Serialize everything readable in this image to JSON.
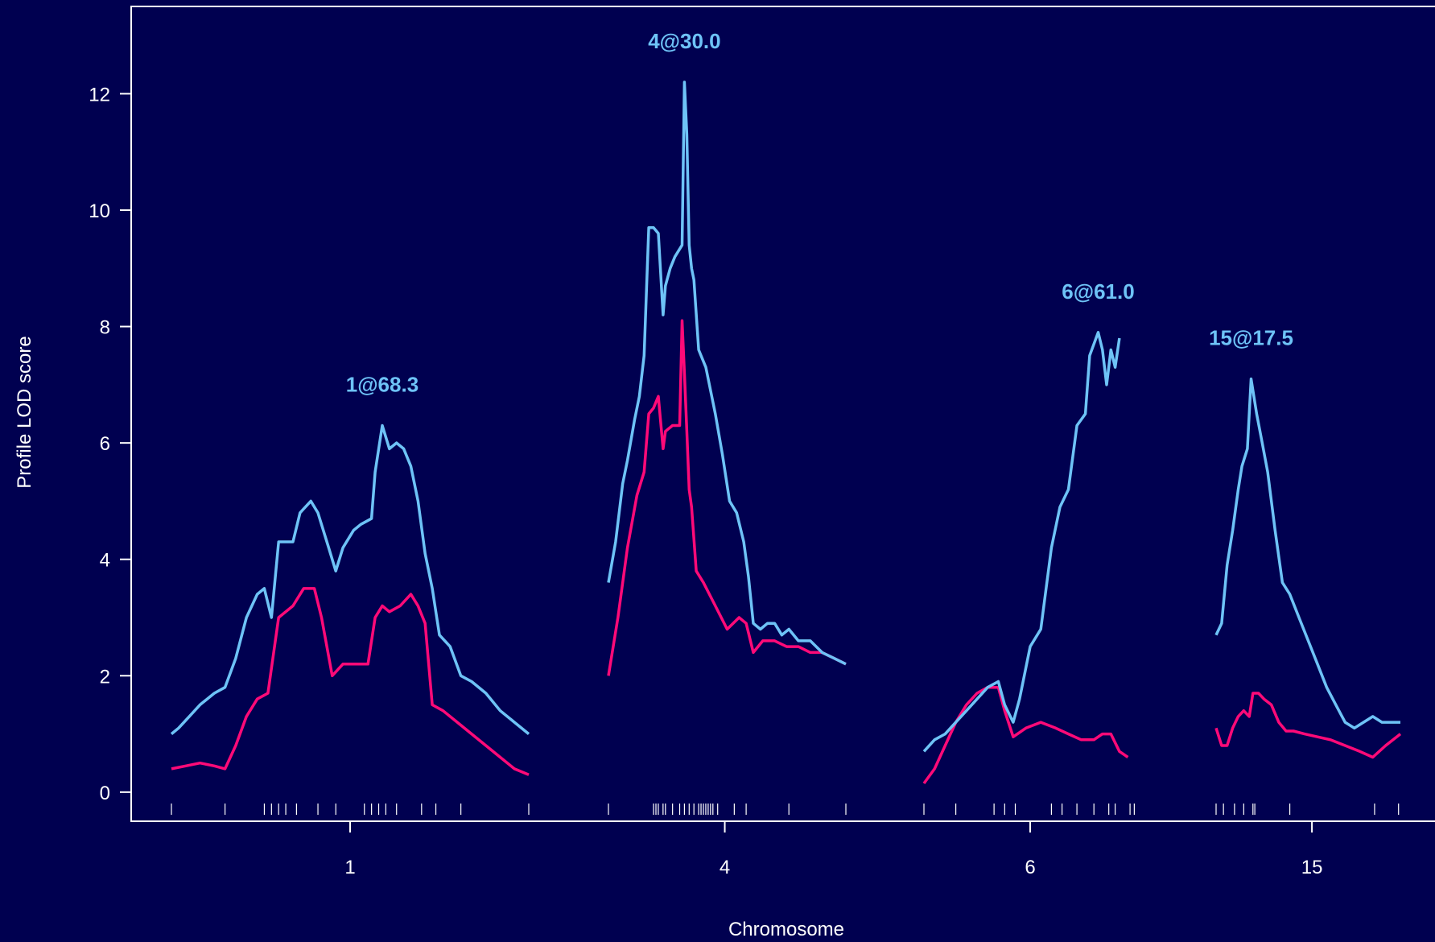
{
  "chart_data": {
    "type": "line",
    "xlabel": "Chromosome",
    "ylabel": "Profile LOD score",
    "ylim": [
      -0.5,
      13.5
    ],
    "yticks": [
      0,
      2,
      4,
      6,
      8,
      10,
      12
    ],
    "colors": {
      "background": "#000050",
      "axis": "#ffffff",
      "series_a": "#6ec3f7",
      "series_b": "#ff0a78"
    },
    "chromosomes": [
      {
        "name": "1",
        "start": 0,
        "end": 100,
        "tick_pos": 50,
        "markers": [
          0,
          15,
          26,
          28,
          30,
          32,
          35,
          41,
          46,
          54,
          56,
          58,
          60,
          63,
          70,
          74,
          81,
          100
        ],
        "peak_label": "1@68.3",
        "series_a": [
          [
            0,
            1.0
          ],
          [
            2,
            1.1
          ],
          [
            5,
            1.3
          ],
          [
            8,
            1.5
          ],
          [
            12,
            1.7
          ],
          [
            15,
            1.8
          ],
          [
            18,
            2.3
          ],
          [
            21,
            3.0
          ],
          [
            24,
            3.4
          ],
          [
            26,
            3.5
          ],
          [
            28,
            3.0
          ],
          [
            30,
            4.3
          ],
          [
            34,
            4.3
          ],
          [
            36,
            4.8
          ],
          [
            39,
            5.0
          ],
          [
            41,
            4.8
          ],
          [
            44,
            4.2
          ],
          [
            46,
            3.8
          ],
          [
            48,
            4.2
          ],
          [
            51,
            4.5
          ],
          [
            53,
            4.6
          ],
          [
            56,
            4.7
          ],
          [
            57,
            5.5
          ],
          [
            59,
            6.3
          ],
          [
            61,
            5.9
          ],
          [
            63,
            6.0
          ],
          [
            65,
            5.9
          ],
          [
            67,
            5.6
          ],
          [
            69,
            5.0
          ],
          [
            71,
            4.1
          ],
          [
            73,
            3.5
          ],
          [
            75,
            2.7
          ],
          [
            78,
            2.5
          ],
          [
            81,
            2.0
          ],
          [
            84,
            1.9
          ],
          [
            88,
            1.7
          ],
          [
            92,
            1.4
          ],
          [
            96,
            1.2
          ],
          [
            100,
            1.0
          ]
        ],
        "series_b": [
          [
            0,
            0.4
          ],
          [
            4,
            0.45
          ],
          [
            8,
            0.5
          ],
          [
            12,
            0.45
          ],
          [
            15,
            0.4
          ],
          [
            18,
            0.8
          ],
          [
            21,
            1.3
          ],
          [
            24,
            1.6
          ],
          [
            27,
            1.7
          ],
          [
            30,
            3.0
          ],
          [
            34,
            3.2
          ],
          [
            37,
            3.5
          ],
          [
            40,
            3.5
          ],
          [
            42,
            3.0
          ],
          [
            45,
            2.0
          ],
          [
            48,
            2.2
          ],
          [
            51,
            2.2
          ],
          [
            55,
            2.2
          ],
          [
            57,
            3.0
          ],
          [
            59,
            3.2
          ],
          [
            61,
            3.1
          ],
          [
            64,
            3.2
          ],
          [
            67,
            3.4
          ],
          [
            69,
            3.2
          ],
          [
            71,
            2.9
          ],
          [
            73,
            1.5
          ],
          [
            76,
            1.4
          ],
          [
            80,
            1.2
          ],
          [
            84,
            1.0
          ],
          [
            88,
            0.8
          ],
          [
            92,
            0.6
          ],
          [
            96,
            0.4
          ],
          [
            100,
            0.3
          ]
        ]
      },
      {
        "name": "4",
        "start": 0,
        "end": 100,
        "tick_pos": 49,
        "markers": [
          0,
          19,
          20,
          21,
          23,
          24,
          27,
          30,
          32,
          34,
          36,
          38,
          39,
          40,
          41,
          42,
          43,
          44,
          46,
          53,
          58,
          76,
          100
        ],
        "peak_label": "4@30.0",
        "series_a": [
          [
            0,
            3.6
          ],
          [
            3,
            4.3
          ],
          [
            6,
            5.3
          ],
          [
            8,
            5.7
          ],
          [
            11,
            6.4
          ],
          [
            13,
            6.8
          ],
          [
            15,
            7.5
          ],
          [
            17,
            9.7
          ],
          [
            19,
            9.7
          ],
          [
            21,
            9.6
          ],
          [
            23,
            8.2
          ],
          [
            24,
            8.7
          ],
          [
            26,
            9.0
          ],
          [
            28,
            9.2
          ],
          [
            31,
            9.4
          ],
          [
            32,
            12.2
          ],
          [
            33,
            11.3
          ],
          [
            34,
            9.4
          ],
          [
            35,
            9.0
          ],
          [
            36,
            8.8
          ],
          [
            38,
            7.6
          ],
          [
            41,
            7.3
          ],
          [
            45,
            6.5
          ],
          [
            48,
            5.8
          ],
          [
            51,
            5.0
          ],
          [
            54,
            4.8
          ],
          [
            57,
            4.3
          ],
          [
            59,
            3.7
          ],
          [
            61,
            2.9
          ],
          [
            64,
            2.8
          ],
          [
            67,
            2.9
          ],
          [
            70,
            2.9
          ],
          [
            73,
            2.7
          ],
          [
            76,
            2.8
          ],
          [
            80,
            2.6
          ],
          [
            85,
            2.6
          ],
          [
            90,
            2.4
          ],
          [
            95,
            2.3
          ],
          [
            100,
            2.2
          ]
        ],
        "series_b": [
          [
            0,
            2.0
          ],
          [
            4,
            3.0
          ],
          [
            8,
            4.2
          ],
          [
            12,
            5.1
          ],
          [
            15,
            5.5
          ],
          [
            17,
            6.5
          ],
          [
            19,
            6.6
          ],
          [
            21,
            6.8
          ],
          [
            23,
            5.9
          ],
          [
            24,
            6.2
          ],
          [
            27,
            6.3
          ],
          [
            30,
            6.3
          ],
          [
            31,
            8.1
          ],
          [
            32,
            7.2
          ],
          [
            33,
            6.2
          ],
          [
            34,
            5.2
          ],
          [
            35,
            4.9
          ],
          [
            37,
            3.8
          ],
          [
            40,
            3.6
          ],
          [
            45,
            3.2
          ],
          [
            50,
            2.8
          ],
          [
            55,
            3.0
          ],
          [
            58,
            2.9
          ],
          [
            61,
            2.4
          ],
          [
            65,
            2.6
          ],
          [
            70,
            2.6
          ],
          [
            75,
            2.5
          ],
          [
            80,
            2.5
          ],
          [
            85,
            2.4
          ],
          [
            90,
            2.4
          ],
          [
            95,
            2.3
          ],
          [
            100,
            2.2
          ]
        ]
      },
      {
        "name": "6",
        "start": 0,
        "end": 100,
        "tick_pos": 50,
        "markers": [
          0,
          15,
          33,
          38,
          43,
          60,
          65,
          72,
          80,
          87,
          90,
          97,
          99
        ],
        "peak_label": "6@61.0",
        "series_a": [
          [
            0,
            0.7
          ],
          [
            5,
            0.9
          ],
          [
            10,
            1.0
          ],
          [
            15,
            1.2
          ],
          [
            20,
            1.4
          ],
          [
            25,
            1.6
          ],
          [
            30,
            1.8
          ],
          [
            35,
            1.9
          ],
          [
            38,
            1.5
          ],
          [
            42,
            1.2
          ],
          [
            45,
            1.6
          ],
          [
            50,
            2.5
          ],
          [
            55,
            2.8
          ],
          [
            60,
            4.2
          ],
          [
            64,
            4.9
          ],
          [
            68,
            5.2
          ],
          [
            72,
            6.3
          ],
          [
            76,
            6.5
          ],
          [
            78,
            7.5
          ],
          [
            82,
            7.9
          ],
          [
            84,
            7.6
          ],
          [
            86,
            7.0
          ],
          [
            88,
            7.6
          ],
          [
            90,
            7.3
          ],
          [
            92,
            7.8
          ]
        ],
        "series_b": [
          [
            0,
            0.15
          ],
          [
            5,
            0.4
          ],
          [
            10,
            0.8
          ],
          [
            15,
            1.2
          ],
          [
            20,
            1.5
          ],
          [
            25,
            1.7
          ],
          [
            30,
            1.8
          ],
          [
            35,
            1.8
          ],
          [
            38,
            1.4
          ],
          [
            42,
            0.95
          ],
          [
            48,
            1.1
          ],
          [
            55,
            1.2
          ],
          [
            62,
            1.1
          ],
          [
            68,
            1.0
          ],
          [
            74,
            0.9
          ],
          [
            80,
            0.9
          ],
          [
            84,
            1.0
          ],
          [
            88,
            1.0
          ],
          [
            92,
            0.7
          ],
          [
            96,
            0.6
          ]
        ]
      },
      {
        "name": "15",
        "start": 0,
        "end": 100,
        "tick_pos": 52,
        "markers": [
          0,
          4,
          10,
          15,
          20,
          21,
          40,
          86,
          99
        ],
        "peak_label": "15@17.5",
        "series_a": [
          [
            0,
            2.7
          ],
          [
            3,
            2.9
          ],
          [
            6,
            3.9
          ],
          [
            9,
            4.5
          ],
          [
            12,
            5.2
          ],
          [
            14,
            5.6
          ],
          [
            17,
            5.9
          ],
          [
            19,
            7.1
          ],
          [
            22,
            6.5
          ],
          [
            25,
            6.0
          ],
          [
            28,
            5.5
          ],
          [
            32,
            4.5
          ],
          [
            36,
            3.6
          ],
          [
            40,
            3.4
          ],
          [
            45,
            3.0
          ],
          [
            50,
            2.6
          ],
          [
            55,
            2.2
          ],
          [
            60,
            1.8
          ],
          [
            65,
            1.5
          ],
          [
            70,
            1.2
          ],
          [
            75,
            1.1
          ],
          [
            80,
            1.2
          ],
          [
            85,
            1.3
          ],
          [
            90,
            1.2
          ],
          [
            95,
            1.2
          ],
          [
            100,
            1.2
          ]
        ],
        "series_b": [
          [
            0,
            1.1
          ],
          [
            3,
            0.8
          ],
          [
            6,
            0.8
          ],
          [
            9,
            1.1
          ],
          [
            12,
            1.3
          ],
          [
            15,
            1.4
          ],
          [
            18,
            1.3
          ],
          [
            20,
            1.7
          ],
          [
            23,
            1.7
          ],
          [
            26,
            1.6
          ],
          [
            30,
            1.5
          ],
          [
            34,
            1.2
          ],
          [
            38,
            1.05
          ],
          [
            42,
            1.05
          ],
          [
            48,
            1.0
          ],
          [
            55,
            0.95
          ],
          [
            62,
            0.9
          ],
          [
            70,
            0.8
          ],
          [
            78,
            0.7
          ],
          [
            85,
            0.6
          ],
          [
            92,
            0.8
          ],
          [
            100,
            1.0
          ]
        ]
      }
    ]
  }
}
